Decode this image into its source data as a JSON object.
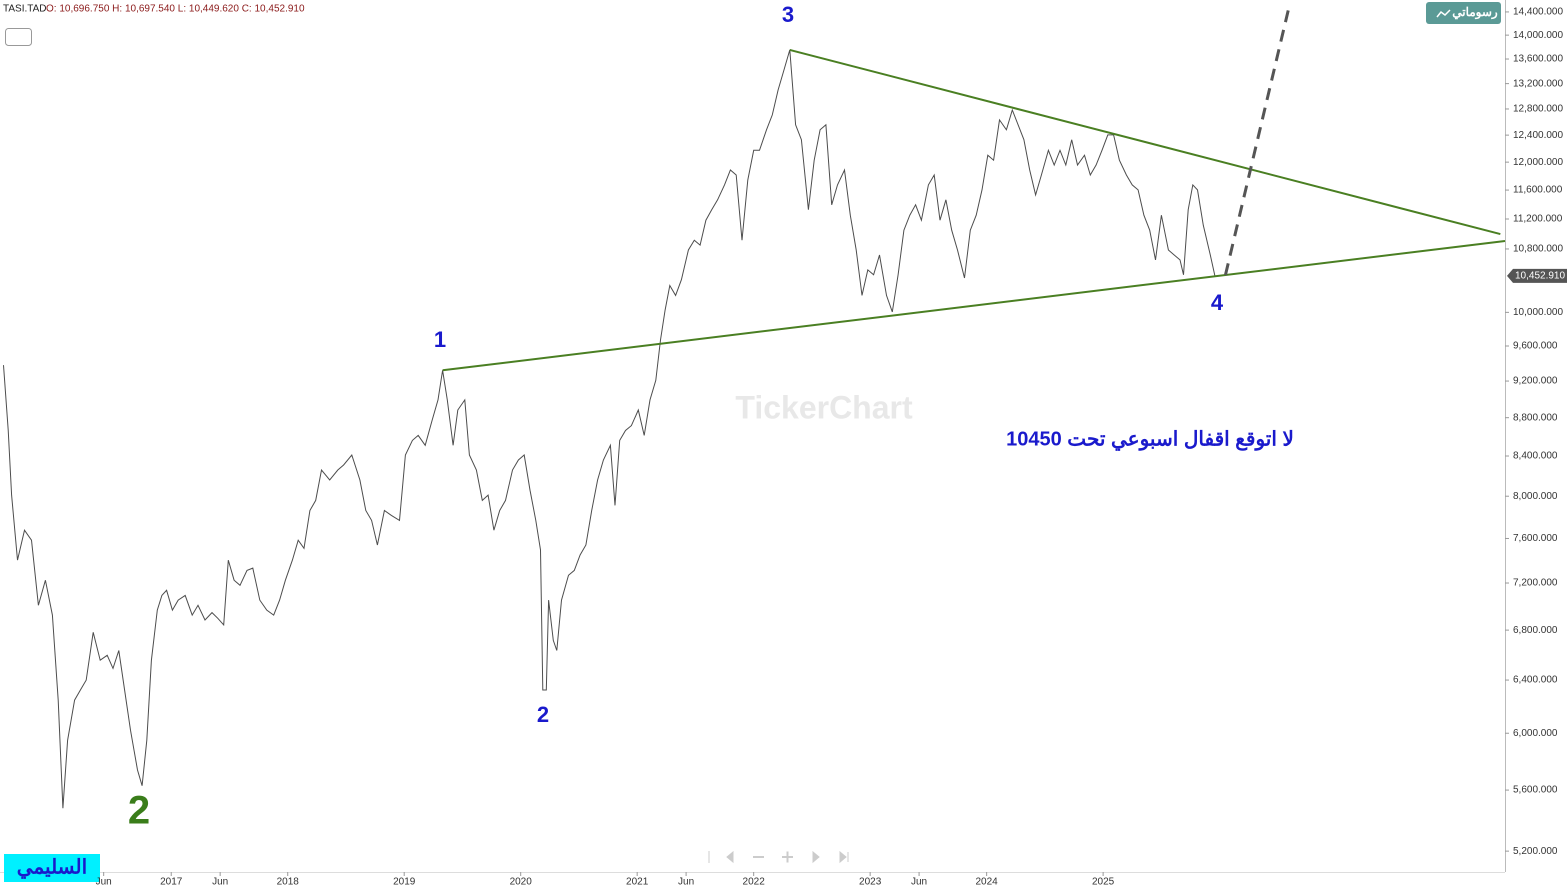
{
  "header": {
    "symbol": "TASI.TAD",
    "ohlc": "O: 10,696.750 H: 10,697.540 L: 10,449.620 C: 10,452.910"
  },
  "my_drawings_button": "رسوماتي",
  "author_tag": "السليمي",
  "watermark": "TickerChart",
  "chart_data": {
    "type": "line",
    "color": "#4d4d4d",
    "log_scale": true,
    "grid": false,
    "xlim": [
      2015.53,
      2028.45
    ],
    "ylim": [
      5070,
      14610
    ],
    "xticks": [
      {
        "value": 2016.42,
        "label": "Jun"
      },
      2017,
      {
        "value": 2017.42,
        "label": "Jun"
      },
      2018,
      2019,
      2020,
      2021,
      {
        "value": 2021.42,
        "label": "Jun"
      },
      2022,
      2023,
      {
        "value": 2023.42,
        "label": "Jun"
      },
      2024,
      2025
    ],
    "yticks": [
      {
        "value": 14400,
        "label": "14,400.000"
      },
      {
        "value": 14000,
        "label": "14,000.000"
      },
      {
        "value": 13600,
        "label": "13,600.000"
      },
      {
        "value": 13200,
        "label": "13,200.000"
      },
      {
        "value": 12800,
        "label": "12,800.000"
      },
      {
        "value": 12400,
        "label": "12,400.000"
      },
      {
        "value": 12000,
        "label": "12,000.000"
      },
      {
        "value": 11600,
        "label": "11,600.000"
      },
      {
        "value": 11200,
        "label": "11,200.000"
      },
      {
        "value": 10800,
        "label": "10,800.000"
      },
      {
        "value": 10000,
        "label": "10,000.000"
      },
      {
        "value": 9600,
        "label": "9,600.000"
      },
      {
        "value": 9200,
        "label": "9,200.000"
      },
      {
        "value": 8800,
        "label": "8,800.000"
      },
      {
        "value": 8400,
        "label": "8,400.000"
      },
      {
        "value": 8000,
        "label": "8,000.000"
      },
      {
        "value": 7600,
        "label": "7,600.000"
      },
      {
        "value": 7200,
        "label": "7,200.000"
      },
      {
        "value": 6800,
        "label": "6,800.000"
      },
      {
        "value": 6400,
        "label": "6,400.000"
      },
      {
        "value": 6000,
        "label": "6,000.000"
      },
      {
        "value": 5600,
        "label": "5,600.000"
      },
      {
        "value": 5200,
        "label": "5,200.000"
      }
    ],
    "x": [
      2015.56,
      2015.6,
      2015.63,
      2015.68,
      2015.74,
      2015.8,
      2015.86,
      2015.92,
      2015.98,
      2016.03,
      2016.07,
      2016.11,
      2016.17,
      2016.22,
      2016.27,
      2016.33,
      2016.39,
      2016.45,
      2016.5,
      2016.55,
      2016.6,
      2016.65,
      2016.71,
      2016.75,
      2016.79,
      2016.83,
      2016.88,
      2016.92,
      2016.96,
      2017.01,
      2017.06,
      2017.12,
      2017.18,
      2017.23,
      2017.29,
      2017.35,
      2017.4,
      2017.45,
      2017.49,
      2017.54,
      2017.59,
      2017.65,
      2017.7,
      2017.76,
      2017.82,
      2017.88,
      2017.93,
      2017.98,
      2018.04,
      2018.09,
      2018.14,
      2018.19,
      2018.24,
      2018.29,
      2018.36,
      2018.43,
      2018.48,
      2018.55,
      2018.62,
      2018.67,
      2018.72,
      2018.77,
      2018.83,
      2018.89,
      2018.96,
      2019.01,
      2019.07,
      2019.12,
      2019.18,
      2019.24,
      2019.29,
      2019.33,
      2019.37,
      2019.42,
      2019.46,
      2019.52,
      2019.56,
      2019.62,
      2019.67,
      2019.72,
      2019.77,
      2019.82,
      2019.87,
      2019.93,
      2019.98,
      2020.03,
      2020.08,
      2020.13,
      2020.17,
      2020.19,
      2020.22,
      2020.24,
      2020.28,
      2020.31,
      2020.35,
      2020.41,
      2020.46,
      2020.51,
      2020.56,
      2020.61,
      2020.66,
      2020.71,
      2020.77,
      2020.81,
      2020.85,
      2020.9,
      2020.95,
      2021.01,
      2021.06,
      2021.11,
      2021.16,
      2021.2,
      2021.24,
      2021.28,
      2021.33,
      2021.38,
      2021.44,
      2021.49,
      2021.54,
      2021.59,
      2021.64,
      2021.69,
      2021.75,
      2021.8,
      2021.85,
      2021.9,
      2021.95,
      2022.0,
      2022.05,
      2022.11,
      2022.16,
      2022.21,
      2022.26,
      2022.31,
      2022.36,
      2022.41,
      2022.47,
      2022.52,
      2022.57,
      2022.62,
      2022.67,
      2022.72,
      2022.78,
      2022.83,
      2022.88,
      2022.93,
      2022.98,
      2023.03,
      2023.08,
      2023.14,
      2023.19,
      2023.24,
      2023.29,
      2023.34,
      2023.39,
      2023.44,
      2023.5,
      2023.55,
      2023.6,
      2023.65,
      2023.7,
      2023.75,
      2023.81,
      2023.86,
      2023.91,
      2023.96,
      2024.01,
      2024.06,
      2024.11,
      2024.17,
      2024.22,
      2024.27,
      2024.32,
      2024.37,
      2024.42,
      2024.47,
      2024.53,
      2024.58,
      2024.63,
      2024.68,
      2024.73,
      2024.78,
      2024.84,
      2024.89,
      2024.94,
      2024.99,
      2025.04,
      2025.09,
      2025.14,
      2025.2,
      2025.25,
      2025.3,
      2025.35,
      2025.4,
      2025.45,
      2025.5,
      2025.56,
      2025.61,
      2025.66,
      2025.69,
      2025.73,
      2025.77,
      2025.81,
      2025.86,
      2025.92,
      2025.96
    ],
    "values": [
      9380,
      8669,
      8011,
      7403,
      7677,
      7584,
      7008,
      7225,
      6925,
      6246,
      5478,
      5949,
      6246,
      6323,
      6400,
      6782,
      6556,
      6595,
      6491,
      6634,
      6323,
      6022,
      5738,
      5630,
      5949,
      6556,
      6967,
      7093,
      7137,
      6967,
      7052,
      7093,
      6925,
      7008,
      6884,
      6946,
      6898,
      6843,
      7403,
      7225,
      7180,
      7311,
      7332,
      7052,
      6967,
      6925,
      7052,
      7225,
      7403,
      7584,
      7510,
      7862,
      7959,
      8259,
      8159,
      8259,
      8309,
      8410,
      8159,
      7862,
      7769,
      7540,
      7862,
      7816,
      7769,
      8410,
      8561,
      8613,
      8510,
      8775,
      8992,
      9321,
      8992,
      8510,
      8883,
      8992,
      8410,
      8259,
      7959,
      8011,
      7677,
      7862,
      7959,
      8259,
      8359,
      8410,
      8060,
      7769,
      7495,
      6323,
      6323,
      7052,
      6716,
      6634,
      7052,
      7268,
      7311,
      7449,
      7540,
      7862,
      8159,
      8359,
      8510,
      7911,
      8561,
      8664,
      8716,
      8883,
      8613,
      8992,
      9209,
      9671,
      10027,
      10332,
      10208,
      10404,
      10786,
      10915,
      10850,
      11183,
      11327,
      11464,
      11673,
      11886,
      11814,
      10915,
      11743,
      12174,
      12174,
      12480,
      12708,
      13098,
      13421,
      13751,
      12557,
      12332,
      11327,
      12028,
      12480,
      12557,
      11395,
      11673,
      11886,
      11251,
      10786,
      10208,
      10529,
      10466,
      10721,
      10208,
      10006,
      10466,
      11048,
      11251,
      11395,
      11183,
      11673,
      11814,
      11183,
      11464,
      11048,
      10786,
      10426,
      11048,
      11251,
      11602,
      12102,
      12028,
      12632,
      12480,
      12784,
      12557,
      12332,
      11886,
      11533,
      11814,
      12174,
      11958,
      12174,
      11958,
      12332,
      11958,
      12102,
      11814,
      11958,
      12174,
      12404,
      12404,
      12028,
      11814,
      11673,
      11602,
      11251,
      11048,
      10658,
      11251,
      10786,
      10721,
      10658,
      10466,
      11327,
      11673,
      11602,
      11115,
      10721,
      10452.91
    ],
    "last_value_label": "10,452.910",
    "trendlines": [
      {
        "x": [
          2022.31,
          2028.41
        ],
        "y": [
          13751,
          10997
        ],
        "color": "#4a7f22"
      },
      {
        "x": [
          2019.33,
          2028.45
        ],
        "y": [
          9321,
          10905
        ],
        "color": "#4a7f22"
      },
      {
        "x": [
          2026.05,
          2026.6
        ],
        "y": [
          10463,
          14522
        ],
        "color": "#555555",
        "dashed": true
      }
    ],
    "annotations": [
      {
        "text": "3",
        "color": "#1a1acc"
      },
      {
        "text": "1",
        "color": "#1a1acc"
      },
      {
        "text": "2",
        "color": "#1a1acc"
      },
      {
        "text": "4",
        "color": "#1a1acc"
      },
      {
        "text": "2",
        "color": "#3a7d1a"
      },
      {
        "text": "لا اتوقع اقفال اسبوعي تحت 10450",
        "color": "#1a1acc"
      }
    ]
  }
}
